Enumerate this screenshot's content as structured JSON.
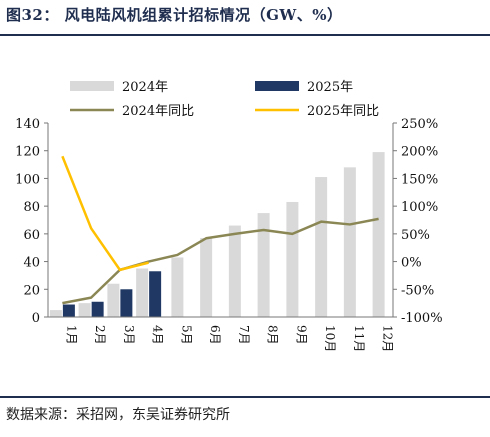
{
  "header": {
    "title": "图32：  风电陆风机组累计招标情况（GW、%）"
  },
  "footer": {
    "source": "数据来源：采招网，东吴证券研究所"
  },
  "colors": {
    "bar_2024": "#d9d9d9",
    "bar_2025": "#1f3864",
    "line_2024": "#8b8755",
    "line_2025": "#ffc000",
    "rule": "#1f2d4e"
  },
  "chart_data": {
    "type": "bar",
    "categories": [
      "1月",
      "2月",
      "3月",
      "4月",
      "5月",
      "6月",
      "7月",
      "8月",
      "9月",
      "10月",
      "11月",
      "12月"
    ],
    "series": [
      {
        "name": "2024年",
        "kind": "bar",
        "axis": "left",
        "values": [
          5,
          10,
          24,
          35,
          43,
          57,
          66,
          75,
          83,
          101,
          108,
          119
        ]
      },
      {
        "name": "2025年",
        "kind": "bar",
        "axis": "left",
        "values": [
          9,
          11,
          20,
          33,
          null,
          null,
          null,
          null,
          null,
          null,
          null,
          null
        ]
      },
      {
        "name": "2024年同比",
        "kind": "line",
        "axis": "right",
        "values": [
          -75,
          -65,
          -15,
          0,
          12,
          42,
          50,
          57,
          50,
          72,
          67,
          77
        ]
      },
      {
        "name": "2025年同比",
        "kind": "line",
        "axis": "right",
        "values": [
          190,
          60,
          -15,
          -2,
          null,
          null,
          null,
          null,
          null,
          null,
          null,
          null
        ]
      }
    ],
    "left_axis": {
      "min": 0,
      "max": 140,
      "step": 20,
      "ticks": [
        "0",
        "20",
        "40",
        "60",
        "80",
        "100",
        "120",
        "140"
      ]
    },
    "right_axis": {
      "min": -100,
      "max": 250,
      "step": 50,
      "ticks": [
        "-100%",
        "-50%",
        "0%",
        "50%",
        "100%",
        "150%",
        "200%",
        "250%"
      ]
    },
    "legend_position": "top",
    "grid": false
  }
}
